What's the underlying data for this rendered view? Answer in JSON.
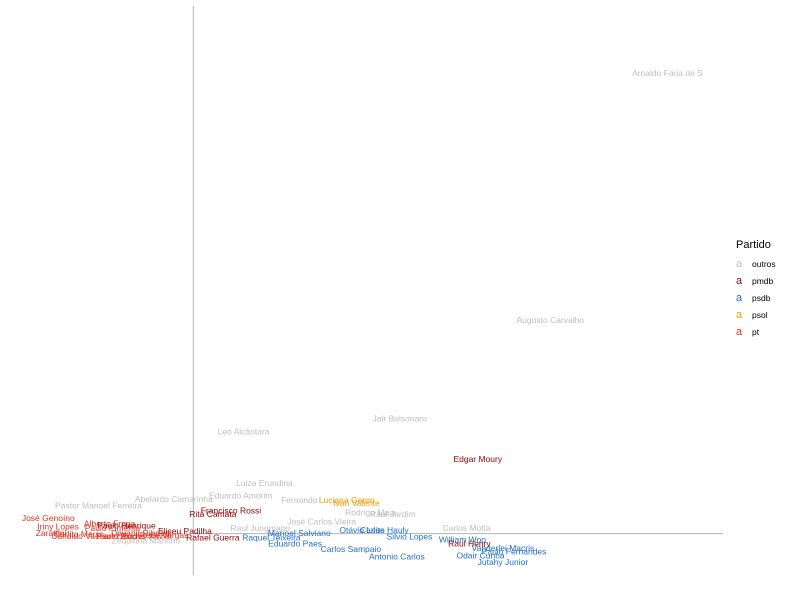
{
  "chart_data": {
    "type": "scatter",
    "title": "",
    "xlabel": "",
    "ylabel": "",
    "xlim": [
      -1.2,
      3.82
    ],
    "ylim": [
      -0.44,
      5.62
    ],
    "axes_cross": [
      0,
      0
    ],
    "grid": false,
    "legend": {
      "title": "Partido",
      "position": "right",
      "key_glyph": "a",
      "entries": [
        {
          "name": "outros",
          "color": "#bdbdbd"
        },
        {
          "name": "pmdb",
          "color": "#8b0000"
        },
        {
          "name": "psdb",
          "color": "#1f6fc4"
        },
        {
          "name": "psol",
          "color": "#e6a000"
        },
        {
          "name": "pt",
          "color": "#e0301e"
        }
      ]
    },
    "points": [
      {
        "label": "Arnaldo Faria de S",
        "party": "outros",
        "x": 3.4,
        "y": 4.9
      },
      {
        "label": "Augusto Carvalho",
        "party": "outros",
        "x": 2.56,
        "y": 2.27
      },
      {
        "label": "Jair Bolsonaro",
        "party": "outros",
        "x": 1.48,
        "y": 1.22
      },
      {
        "label": "Leo Alcântara",
        "party": "outros",
        "x": 0.36,
        "y": 1.08
      },
      {
        "label": "Edgar Moury",
        "party": "pmdb",
        "x": 2.04,
        "y": 0.79
      },
      {
        "label": "Luiza Erundina",
        "party": "outros",
        "x": 0.51,
        "y": 0.53
      },
      {
        "label": "Eduardo Amorim",
        "party": "outros",
        "x": 0.34,
        "y": 0.4
      },
      {
        "label": "Abelardo Camarinha",
        "party": "outros",
        "x": -0.14,
        "y": 0.36
      },
      {
        "label": "Fernando",
        "party": "outros",
        "x": 0.76,
        "y": 0.35
      },
      {
        "label": "Luciana Genro",
        "party": "psol",
        "x": 1.1,
        "y": 0.35
      },
      {
        "label": "Ivan Valente",
        "party": "psol",
        "x": 1.17,
        "y": 0.32
      },
      {
        "label": "Pastor Manoel Ferreira",
        "party": "outros",
        "x": -0.68,
        "y": 0.29
      },
      {
        "label": "Francisco Rossi",
        "party": "pmdb",
        "x": 0.27,
        "y": 0.24
      },
      {
        "label": "Rodrigo Maia",
        "party": "outros",
        "x": 1.27,
        "y": 0.22
      },
      {
        "label": "Raul Jardim",
        "party": "outros",
        "x": 1.43,
        "y": 0.2
      },
      {
        "label": "Rita Camata",
        "party": "pmdb",
        "x": 0.14,
        "y": 0.2
      },
      {
        "label": "José Carlos Vieira",
        "party": "outros",
        "x": 0.92,
        "y": 0.12
      },
      {
        "label": "José Genoíno",
        "party": "pt",
        "x": -1.04,
        "y": 0.16
      },
      {
        "label": "Alberto Fraga",
        "party": "pt",
        "x": -0.6,
        "y": 0.1
      },
      {
        "label": "Carlos Motta",
        "party": "outros",
        "x": 1.96,
        "y": 0.05
      },
      {
        "label": "Paulo Henrique",
        "party": "pmdb",
        "x": -0.48,
        "y": 0.08
      },
      {
        "label": "Otávio Leite",
        "party": "psdb",
        "x": 1.21,
        "y": 0.03
      },
      {
        "label": "Carlos Hauly",
        "party": "psdb",
        "x": 1.37,
        "y": 0.03
      },
      {
        "label": "Silvio Lopes",
        "party": "psdb",
        "x": 1.55,
        "y": -0.04
      },
      {
        "label": "William Woo",
        "party": "psdb",
        "x": 1.93,
        "y": -0.07
      },
      {
        "label": "Raul Henry",
        "party": "pmdb",
        "x": 1.98,
        "y": -0.11
      },
      {
        "label": "Raul Jungmann",
        "party": "outros",
        "x": 0.48,
        "y": 0.05
      },
      {
        "label": "Manoel Salviano",
        "party": "psdb",
        "x": 0.76,
        "y": 0.0
      },
      {
        "label": "Rafael Guerra",
        "party": "pmdb",
        "x": 0.14,
        "y": -0.05
      },
      {
        "label": "Raquel Teixeira",
        "party": "psdb",
        "x": 0.56,
        "y": -0.05
      },
      {
        "label": "Eduardo Paes",
        "party": "psdb",
        "x": 0.73,
        "y": -0.11
      },
      {
        "label": "Carlos Sampaio",
        "party": "psdb",
        "x": 1.13,
        "y": -0.17
      },
      {
        "label": "Antonio Carlos",
        "party": "psdb",
        "x": 1.46,
        "y": -0.25
      },
      {
        "label": "Paulo Fernandes",
        "party": "psdb",
        "x": 2.3,
        "y": -0.2
      },
      {
        "label": "Vanderlei Macris",
        "party": "psdb",
        "x": 2.22,
        "y": -0.16
      },
      {
        "label": "Odair Cunha",
        "party": "psdb",
        "x": 2.06,
        "y": -0.24
      },
      {
        "label": "Jutahy Junior",
        "party": "psdb",
        "x": 2.22,
        "y": -0.31
      },
      {
        "label": "Zarattini",
        "party": "pt",
        "x": -1.02,
        "y": 0.0
      },
      {
        "label": "Carlito Merss",
        "party": "pt",
        "x": -0.82,
        "y": -0.01
      },
      {
        "label": "Cândido Vaccarezza",
        "party": "pt",
        "x": -0.74,
        "y": -0.03
      },
      {
        "label": "Paulo Rocha",
        "party": "pt",
        "x": -0.52,
        "y": -0.03
      },
      {
        "label": "Devanir Ribeiro",
        "party": "pt",
        "x": -0.38,
        "y": 0.0
      },
      {
        "label": "Eudes Xavier",
        "party": "pt",
        "x": -0.33,
        "y": -0.03
      },
      {
        "label": "Pepe Vargas",
        "party": "pt",
        "x": -0.21,
        "y": -0.02
      },
      {
        "label": "Eliseu Padilha",
        "party": "pmdb",
        "x": -0.06,
        "y": 0.02
      },
      {
        "label": "Zequinha Marinho",
        "party": "outros",
        "x": -0.34,
        "y": -0.08
      },
      {
        "label": "Iriny Lopes",
        "party": "pt",
        "x": -0.97,
        "y": 0.07
      },
      {
        "label": "Paulo Pimenta",
        "party": "pt",
        "x": -0.58,
        "y": 0.05
      }
    ]
  }
}
